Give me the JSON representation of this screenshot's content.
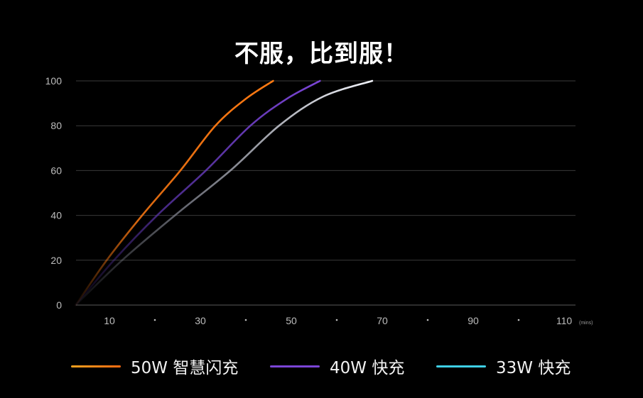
{
  "title": "不服，比到服！",
  "legend": [
    {
      "label": "50W 智慧闪充",
      "color": "#ff7a12",
      "color_start": "#f6a21f"
    },
    {
      "label": "40W 快充",
      "color": "#7b45d6",
      "color_start": "#6a3bd0"
    },
    {
      "label": "33W 快充",
      "color": "#3fd0e6",
      "color_start": "#3fd0e6"
    }
  ],
  "chart_data": {
    "type": "line",
    "title": "不服，比到服！",
    "xlabel": "(mins)",
    "ylabel": "",
    "xlim": [
      0,
      115
    ],
    "ylim": [
      0,
      100
    ],
    "x_ticks": [
      "10",
      "·",
      "30",
      "·",
      "50",
      "·",
      "70",
      "·",
      "90",
      "·",
      "110"
    ],
    "x_unit": "(mins)",
    "y_ticks": [
      "0",
      "20",
      "40",
      "60",
      "80",
      "100"
    ],
    "grid": true,
    "legend_position": "bottom",
    "series": [
      {
        "name": "50W 智慧闪充",
        "color": "#ff7a12",
        "x": [
          2.6,
          9.4,
          17.2,
          25.6,
          33.3,
          40,
          46
        ],
        "y": [
          0,
          20,
          40,
          60,
          80,
          92,
          100
        ]
      },
      {
        "name": "40W 快充",
        "color": "#7b45d6",
        "x": [
          2.6,
          11,
          20.5,
          31.2,
          41,
          49,
          56.3
        ],
        "y": [
          0,
          20,
          40,
          60,
          80,
          92,
          100
        ]
      },
      {
        "name": "33W 快充",
        "color": "#d8dae6",
        "x": [
          2.6,
          12.8,
          24.4,
          36.6,
          47.3,
          57,
          67.8
        ],
        "y": [
          0,
          20,
          40,
          60,
          80,
          93,
          100
        ]
      }
    ]
  }
}
